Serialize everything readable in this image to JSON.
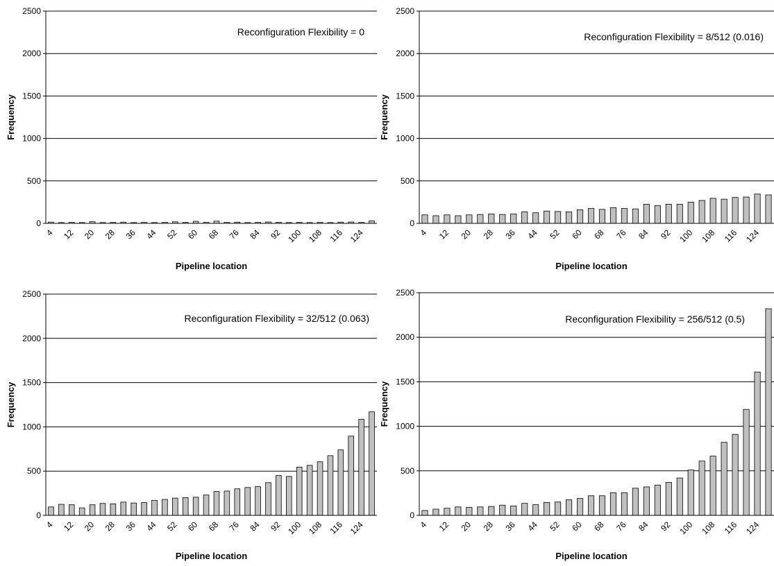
{
  "chart_data": [
    {
      "type": "bar",
      "annotation": "Reconfiguration Flexibility = 0",
      "xlabel": "Pipeline location",
      "ylabel": "Frequency",
      "ylim": [
        0,
        2500
      ],
      "yticks": [
        0,
        500,
        1000,
        1500,
        2000,
        2500
      ],
      "x_tick_labels": [
        "4",
        "12",
        "20",
        "28",
        "36",
        "44",
        "52",
        "60",
        "68",
        "76",
        "84",
        "92",
        "100",
        "108",
        "116",
        "124"
      ],
      "x": [
        4,
        8,
        12,
        16,
        20,
        24,
        28,
        32,
        36,
        40,
        44,
        48,
        52,
        56,
        60,
        64,
        68,
        72,
        76,
        80,
        84,
        88,
        92,
        96,
        100,
        104,
        108,
        112,
        116,
        120,
        124,
        128
      ],
      "values": [
        15,
        10,
        12,
        10,
        20,
        10,
        12,
        14,
        10,
        12,
        10,
        12,
        18,
        12,
        24,
        12,
        26,
        12,
        14,
        10,
        12,
        16,
        12,
        10,
        12,
        10,
        12,
        10,
        14,
        16,
        12,
        30
      ],
      "grid": true,
      "legend": "none"
    },
    {
      "type": "bar",
      "annotation": "Reconfiguration Flexibility = 8/512 (0.016)",
      "xlabel": "Pipeline location",
      "ylabel": "Frequency",
      "ylim": [
        0,
        2500
      ],
      "yticks": [
        0,
        500,
        1000,
        1500,
        2000,
        2500
      ],
      "x_tick_labels": [
        "4",
        "12",
        "20",
        "28",
        "36",
        "44",
        "52",
        "60",
        "68",
        "76",
        "84",
        "92",
        "100",
        "108",
        "116",
        "124"
      ],
      "x": [
        4,
        8,
        12,
        16,
        20,
        24,
        28,
        32,
        36,
        40,
        44,
        48,
        52,
        56,
        60,
        64,
        68,
        72,
        76,
        80,
        84,
        88,
        92,
        96,
        100,
        104,
        108,
        112,
        116,
        120,
        124,
        128
      ],
      "values": [
        100,
        90,
        100,
        90,
        100,
        105,
        110,
        105,
        110,
        135,
        125,
        145,
        140,
        135,
        160,
        175,
        165,
        185,
        175,
        170,
        225,
        210,
        225,
        225,
        250,
        270,
        295,
        285,
        305,
        310,
        345,
        335
      ],
      "grid": true,
      "legend": "none"
    },
    {
      "type": "bar",
      "annotation": "Reconfiguration Flexibility = 32/512 (0.063)",
      "xlabel": "Pipeline location",
      "ylabel": "Frequency",
      "ylim": [
        0,
        2500
      ],
      "yticks": [
        0,
        500,
        1000,
        1500,
        2000,
        2500
      ],
      "x_tick_labels": [
        "4",
        "12",
        "20",
        "28",
        "36",
        "44",
        "52",
        "60",
        "68",
        "76",
        "84",
        "92",
        "100",
        "108",
        "116",
        "124"
      ],
      "x": [
        4,
        8,
        12,
        16,
        20,
        24,
        28,
        32,
        36,
        40,
        44,
        48,
        52,
        56,
        60,
        64,
        68,
        72,
        76,
        80,
        84,
        88,
        92,
        96,
        100,
        104,
        108,
        112,
        116,
        120,
        124,
        128
      ],
      "values": [
        95,
        125,
        120,
        85,
        120,
        135,
        130,
        150,
        140,
        145,
        170,
        180,
        195,
        200,
        205,
        230,
        270,
        275,
        300,
        315,
        325,
        370,
        450,
        440,
        545,
        565,
        605,
        675,
        740,
        895,
        1085,
        1170
      ],
      "grid": true,
      "legend": "none"
    },
    {
      "type": "bar",
      "annotation": "Reconfiguration Flexibility = 256/512 (0.5)",
      "xlabel": "Pipeline location",
      "ylabel": "Frequency",
      "ylim": [
        0,
        2500
      ],
      "yticks": [
        0,
        500,
        1000,
        1500,
        2000,
        2500
      ],
      "x_tick_labels": [
        "4",
        "12",
        "20",
        "28",
        "36",
        "44",
        "52",
        "60",
        "68",
        "76",
        "84",
        "92",
        "100",
        "108",
        "116",
        "124"
      ],
      "x": [
        4,
        8,
        12,
        16,
        20,
        24,
        28,
        32,
        36,
        40,
        44,
        48,
        52,
        56,
        60,
        64,
        68,
        72,
        76,
        80,
        84,
        88,
        92,
        96,
        100,
        104,
        108,
        112,
        116,
        120,
        124,
        128
      ],
      "values": [
        55,
        70,
        80,
        95,
        90,
        95,
        100,
        115,
        105,
        135,
        120,
        145,
        150,
        175,
        190,
        220,
        220,
        255,
        255,
        305,
        320,
        340,
        370,
        420,
        510,
        610,
        665,
        820,
        910,
        1190,
        1610,
        2320
      ],
      "grid": true,
      "legend": "none"
    }
  ]
}
